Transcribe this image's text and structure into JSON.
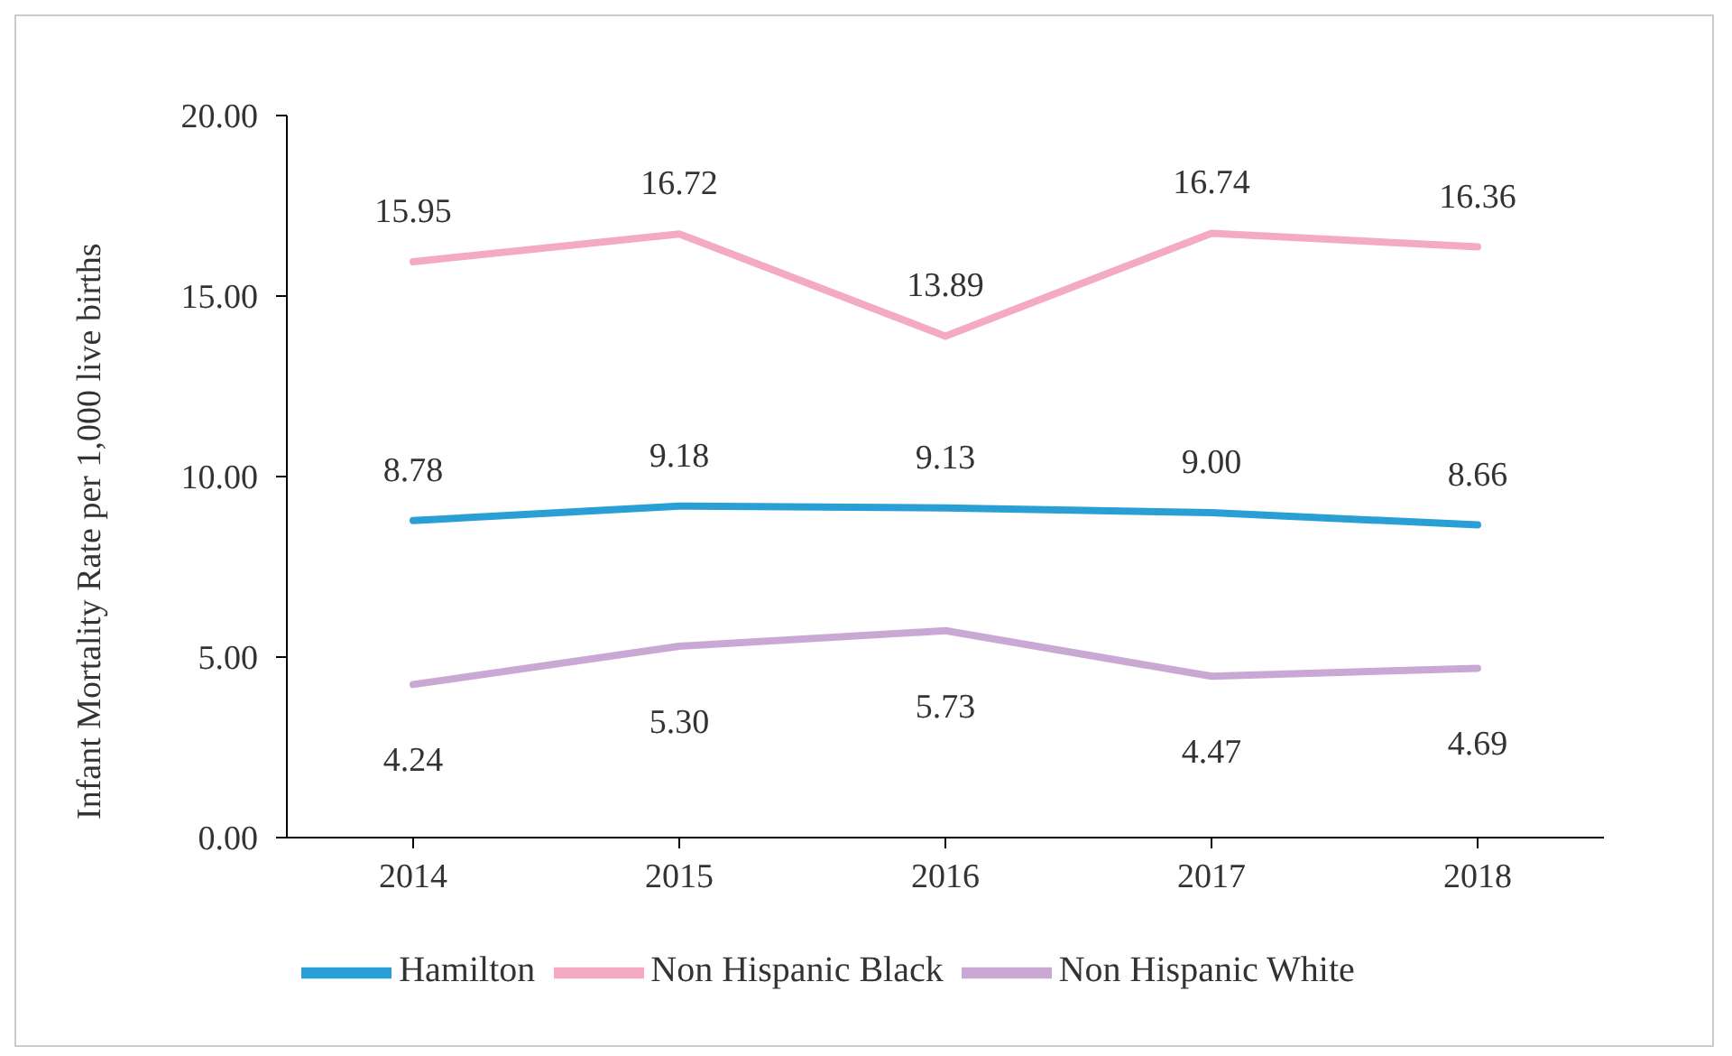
{
  "chart_data": {
    "type": "line",
    "ylabel": "Infant Mortality Rate per 1,000 live births",
    "categories": [
      "2014",
      "2015",
      "2016",
      "2017",
      "2018"
    ],
    "series": [
      {
        "name": "Hamilton",
        "color": "#2a9fd6",
        "values": [
          8.78,
          9.18,
          9.13,
          9.0,
          8.66
        ],
        "value_labels": [
          "8.78",
          "9.18",
          "9.13",
          "9.00",
          "8.66"
        ]
      },
      {
        "name": "Non Hispanic White",
        "color": "#c9a8d4",
        "values": [
          4.24,
          5.3,
          5.73,
          4.47,
          4.69
        ],
        "value_labels": [
          "4.24",
          "5.30",
          "5.73",
          "4.47",
          "4.69"
        ]
      },
      {
        "name": "Non Hispanic Black",
        "color": "#f4a9c4",
        "values": [
          15.95,
          16.72,
          13.89,
          16.74,
          16.36
        ],
        "value_labels": [
          "15.95",
          "16.72",
          "13.89",
          "16.74",
          "16.36"
        ]
      }
    ],
    "ylim": [
      0,
      20
    ],
    "yticks": [
      {
        "value": 0,
        "label": "0.00"
      },
      {
        "value": 5,
        "label": "5.00"
      },
      {
        "value": 10,
        "label": "10.00"
      },
      {
        "value": 15,
        "label": "15.00"
      },
      {
        "value": 20,
        "label": "20.00"
      }
    ],
    "grid": false,
    "legend": "bottom",
    "marker": "none",
    "line_style": "solid"
  }
}
